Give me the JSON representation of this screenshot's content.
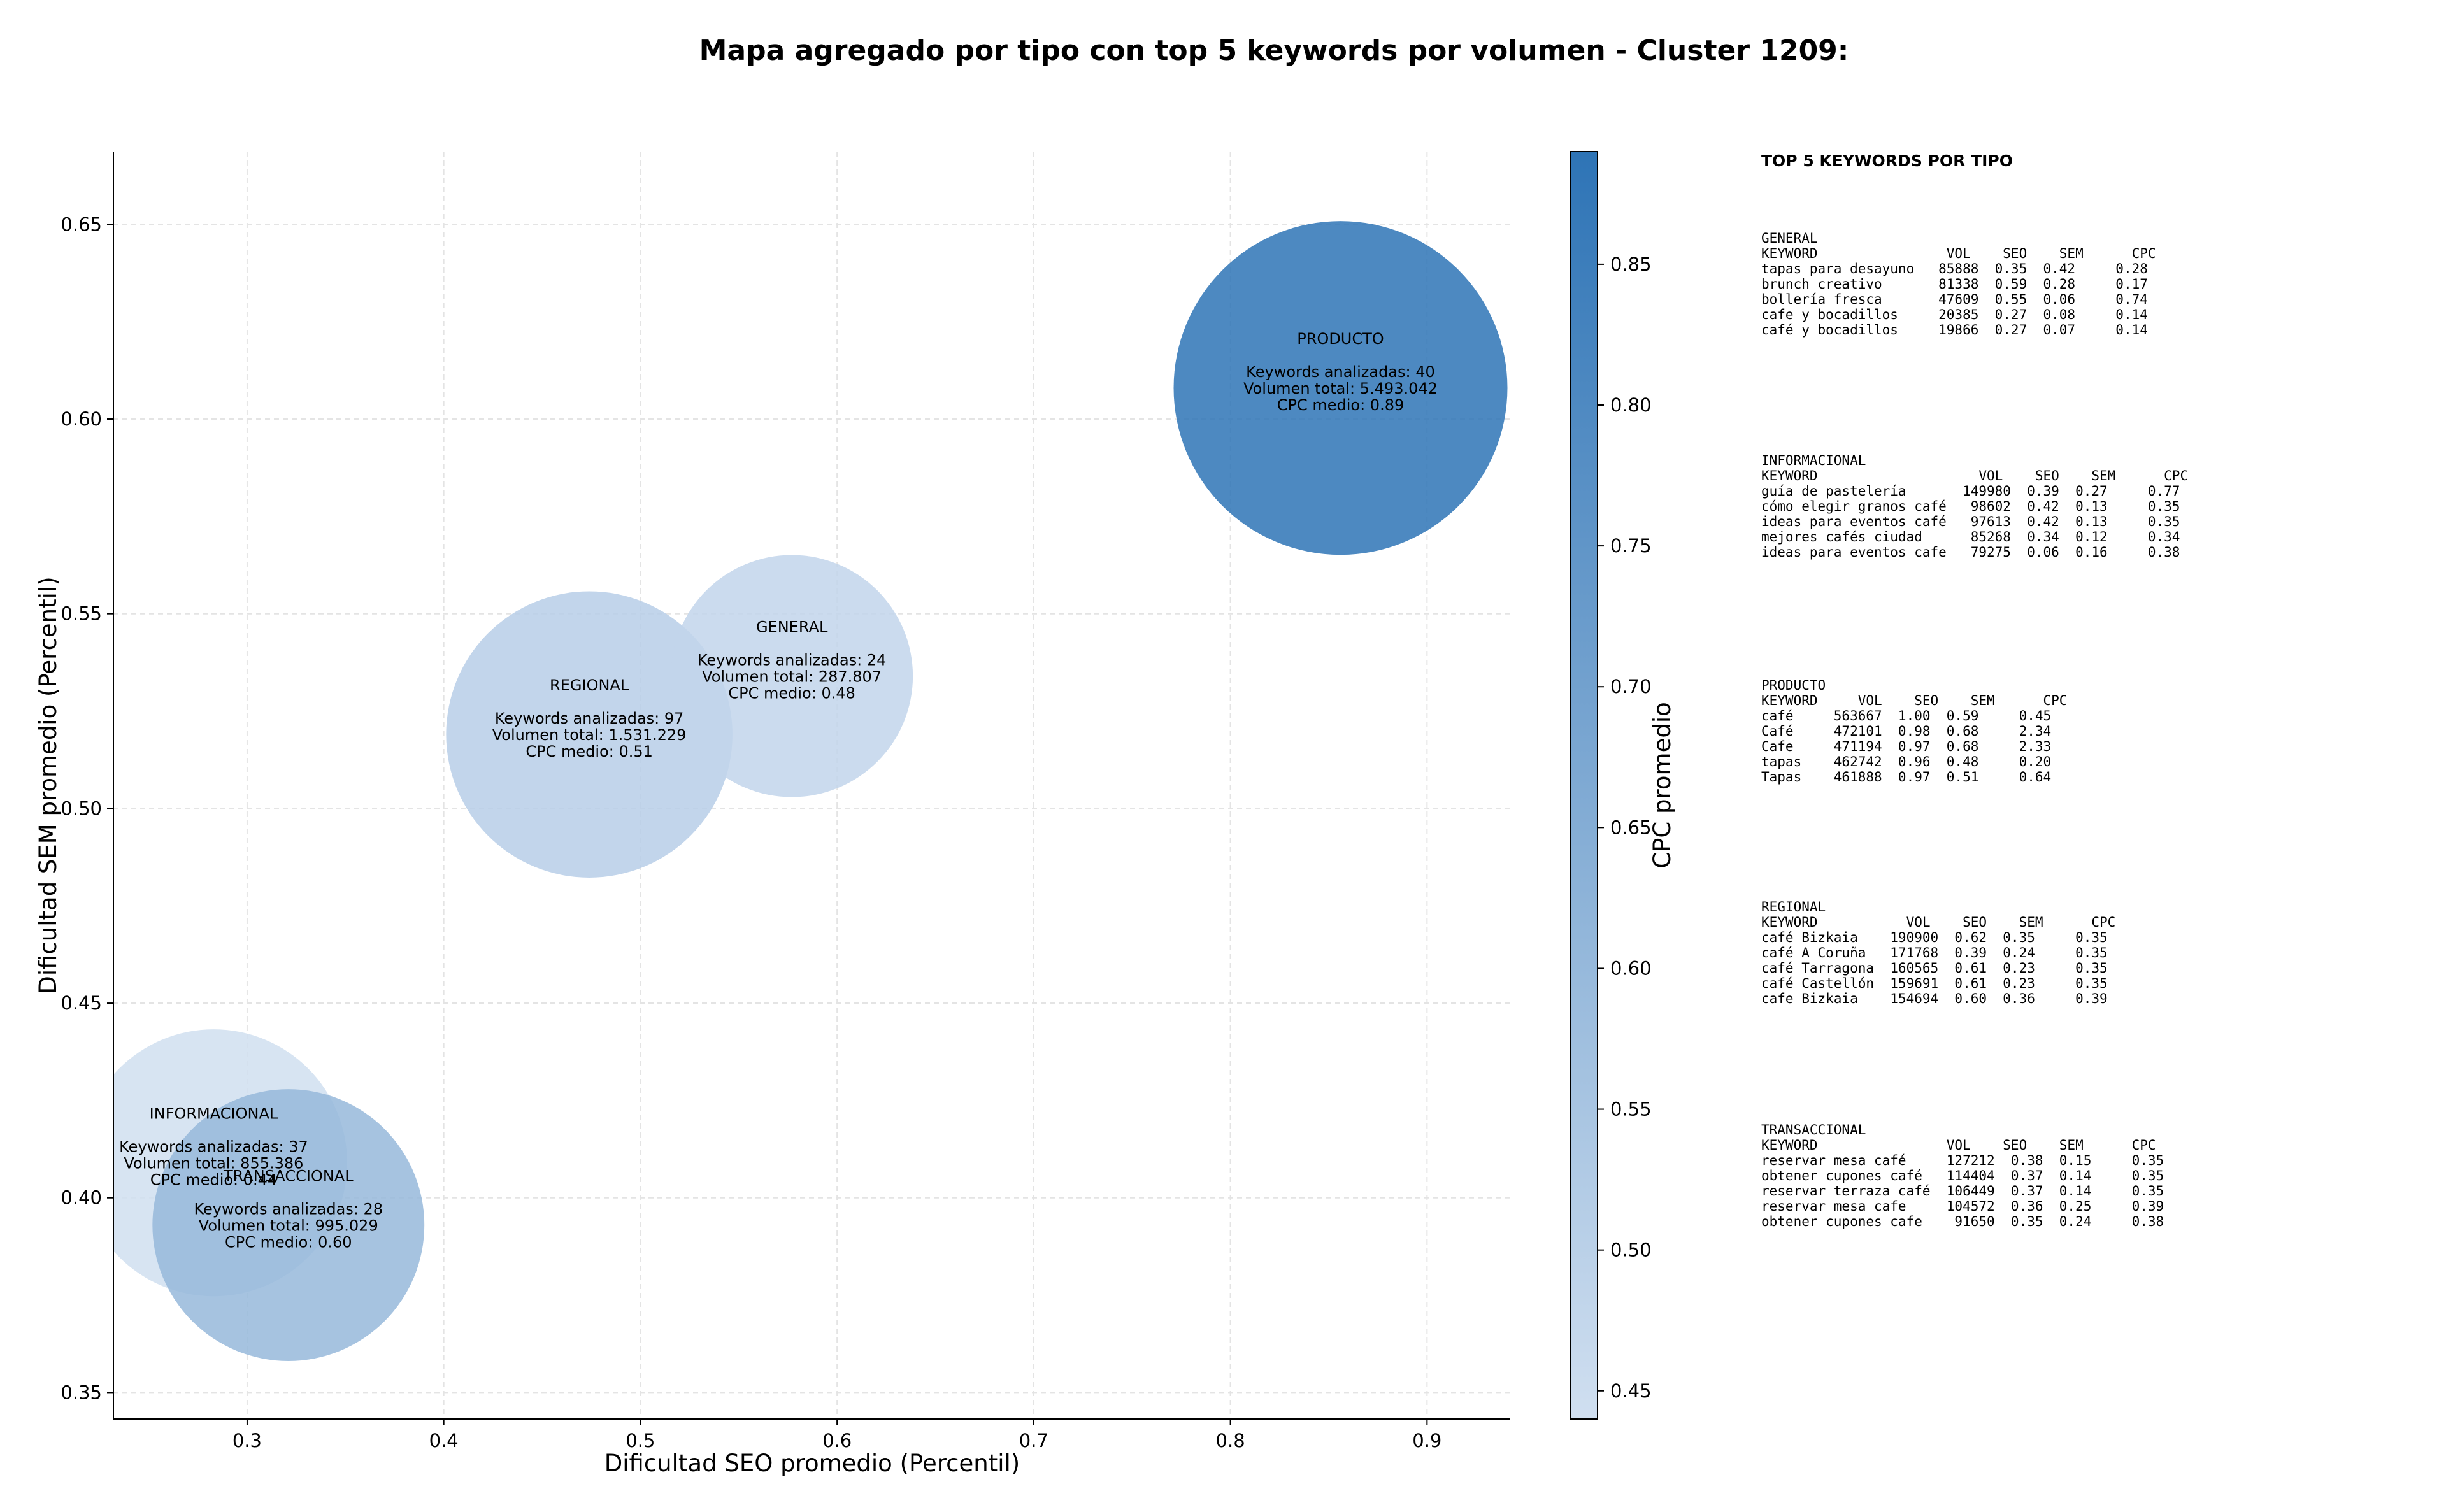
{
  "title": "Mapa agregado por tipo con top 5 keywords por volumen - Cluster 1209:",
  "chart_data": {
    "type": "scatter",
    "subtype": "bubble",
    "xlabel": "Dificultad SEO promedio (Percentil)",
    "ylabel": "Dificultad SEM promedio (Percentil)",
    "xlim": [
      0.232,
      0.942
    ],
    "ylim": [
      0.3432,
      0.6687
    ],
    "x_ticks": [
      "0.3",
      "0.4",
      "0.5",
      "0.6",
      "0.7",
      "0.8",
      "0.9"
    ],
    "y_ticks": [
      "0.35",
      "0.40",
      "0.45",
      "0.50",
      "0.55",
      "0.60",
      "0.65"
    ],
    "grid": true,
    "colorbar": {
      "label": "CPC promedio",
      "min": 0.44,
      "max": 0.89,
      "ticks": [
        "0.45",
        "0.50",
        "0.55",
        "0.60",
        "0.65",
        "0.70",
        "0.75",
        "0.80",
        "0.85"
      ],
      "color_low": "#d0dff0",
      "color_high": "#2e74b6"
    },
    "points": [
      {
        "name": "INFORMACIONAL",
        "x": 0.283,
        "y": 0.409,
        "keywords": 37,
        "volume": 855386,
        "cpc": 0.44,
        "lines": [
          "INFORMACIONAL",
          "",
          "Keywords analizadas: 37",
          "Volumen total: 855.386",
          "CPC medio: 0.44"
        ]
      },
      {
        "name": "TRANSACCIONAL",
        "x": 0.321,
        "y": 0.393,
        "keywords": 28,
        "volume": 995029,
        "cpc": 0.6,
        "lines": [
          "TRANSACCIONAL",
          "",
          "Keywords analizadas: 28",
          "Volumen total: 995.029",
          "CPC medio: 0.60"
        ]
      },
      {
        "name": "REGIONAL",
        "x": 0.474,
        "y": 0.519,
        "keywords": 97,
        "volume": 1531229,
        "cpc": 0.51,
        "lines": [
          "REGIONAL",
          "",
          "Keywords analizadas: 97",
          "Volumen total: 1.531.229",
          "CPC medio: 0.51"
        ]
      },
      {
        "name": "GENERAL",
        "x": 0.577,
        "y": 0.534,
        "keywords": 24,
        "volume": 287807,
        "cpc": 0.48,
        "lines": [
          "GENERAL",
          "",
          "Keywords analizadas: 24",
          "Volumen total: 287.807",
          "CPC medio: 0.48"
        ]
      },
      {
        "name": "PRODUCTO",
        "x": 0.856,
        "y": 0.608,
        "keywords": 40,
        "volume": 5493042,
        "cpc": 0.89,
        "lines": [
          "PRODUCTO",
          "",
          "Keywords analizadas: 40",
          "Volumen total: 5.493.042",
          "CPC medio: 0.89"
        ]
      }
    ]
  },
  "keyword_panel": {
    "title": "TOP 5 KEYWORDS POR TIPO",
    "blocks": [
      {
        "name": "GENERAL",
        "lines": [
          "GENERAL",
          "KEYWORD                VOL    SEO    SEM      CPC",
          "tapas para desayuno   85888  0.35  0.42     0.28",
          "brunch creativo       81338  0.59  0.28     0.17",
          "bollería fresca       47609  0.55  0.06     0.74",
          "cafe y bocadillos     20385  0.27  0.08     0.14",
          "café y bocadillos     19866  0.27  0.07     0.14"
        ]
      },
      {
        "name": "INFORMACIONAL",
        "lines": [
          "INFORMACIONAL",
          "KEYWORD                    VOL    SEO    SEM      CPC",
          "guía de pastelería       149980  0.39  0.27     0.77",
          "cómo elegir granos café   98602  0.42  0.13     0.35",
          "ideas para eventos café   97613  0.42  0.13     0.35",
          "mejores cafés ciudad      85268  0.34  0.12     0.34",
          "ideas para eventos cafe   79275  0.06  0.16     0.38"
        ]
      },
      {
        "name": "PRODUCTO",
        "lines": [
          "PRODUCTO",
          "KEYWORD     VOL    SEO    SEM      CPC",
          "café     563667  1.00  0.59     0.45",
          "Café     472101  0.98  0.68     2.34",
          "Cafe     471194  0.97  0.68     2.33",
          "tapas    462742  0.96  0.48     0.20",
          "Tapas    461888  0.97  0.51     0.64"
        ]
      },
      {
        "name": "REGIONAL",
        "lines": [
          "REGIONAL",
          "KEYWORD           VOL    SEO    SEM      CPC",
          "café Bizkaia    190900  0.62  0.35     0.35",
          "café A Coruña   171768  0.39  0.24     0.35",
          "café Tarragona  160565  0.61  0.23     0.35",
          "café Castellón  159691  0.61  0.23     0.35",
          "cafe Bizkaia    154694  0.60  0.36     0.39"
        ]
      },
      {
        "name": "TRANSACCIONAL",
        "lines": [
          "TRANSACCIONAL",
          "KEYWORD                VOL    SEO    SEM      CPC",
          "reservar mesa café     127212  0.38  0.15     0.35",
          "obtener cupones café   114404  0.37  0.14     0.35",
          "reservar terraza café  106449  0.37  0.14     0.35",
          "reservar mesa cafe     104572  0.36  0.25     0.39",
          "obtener cupones cafe    91650  0.35  0.24     0.38"
        ]
      }
    ]
  }
}
